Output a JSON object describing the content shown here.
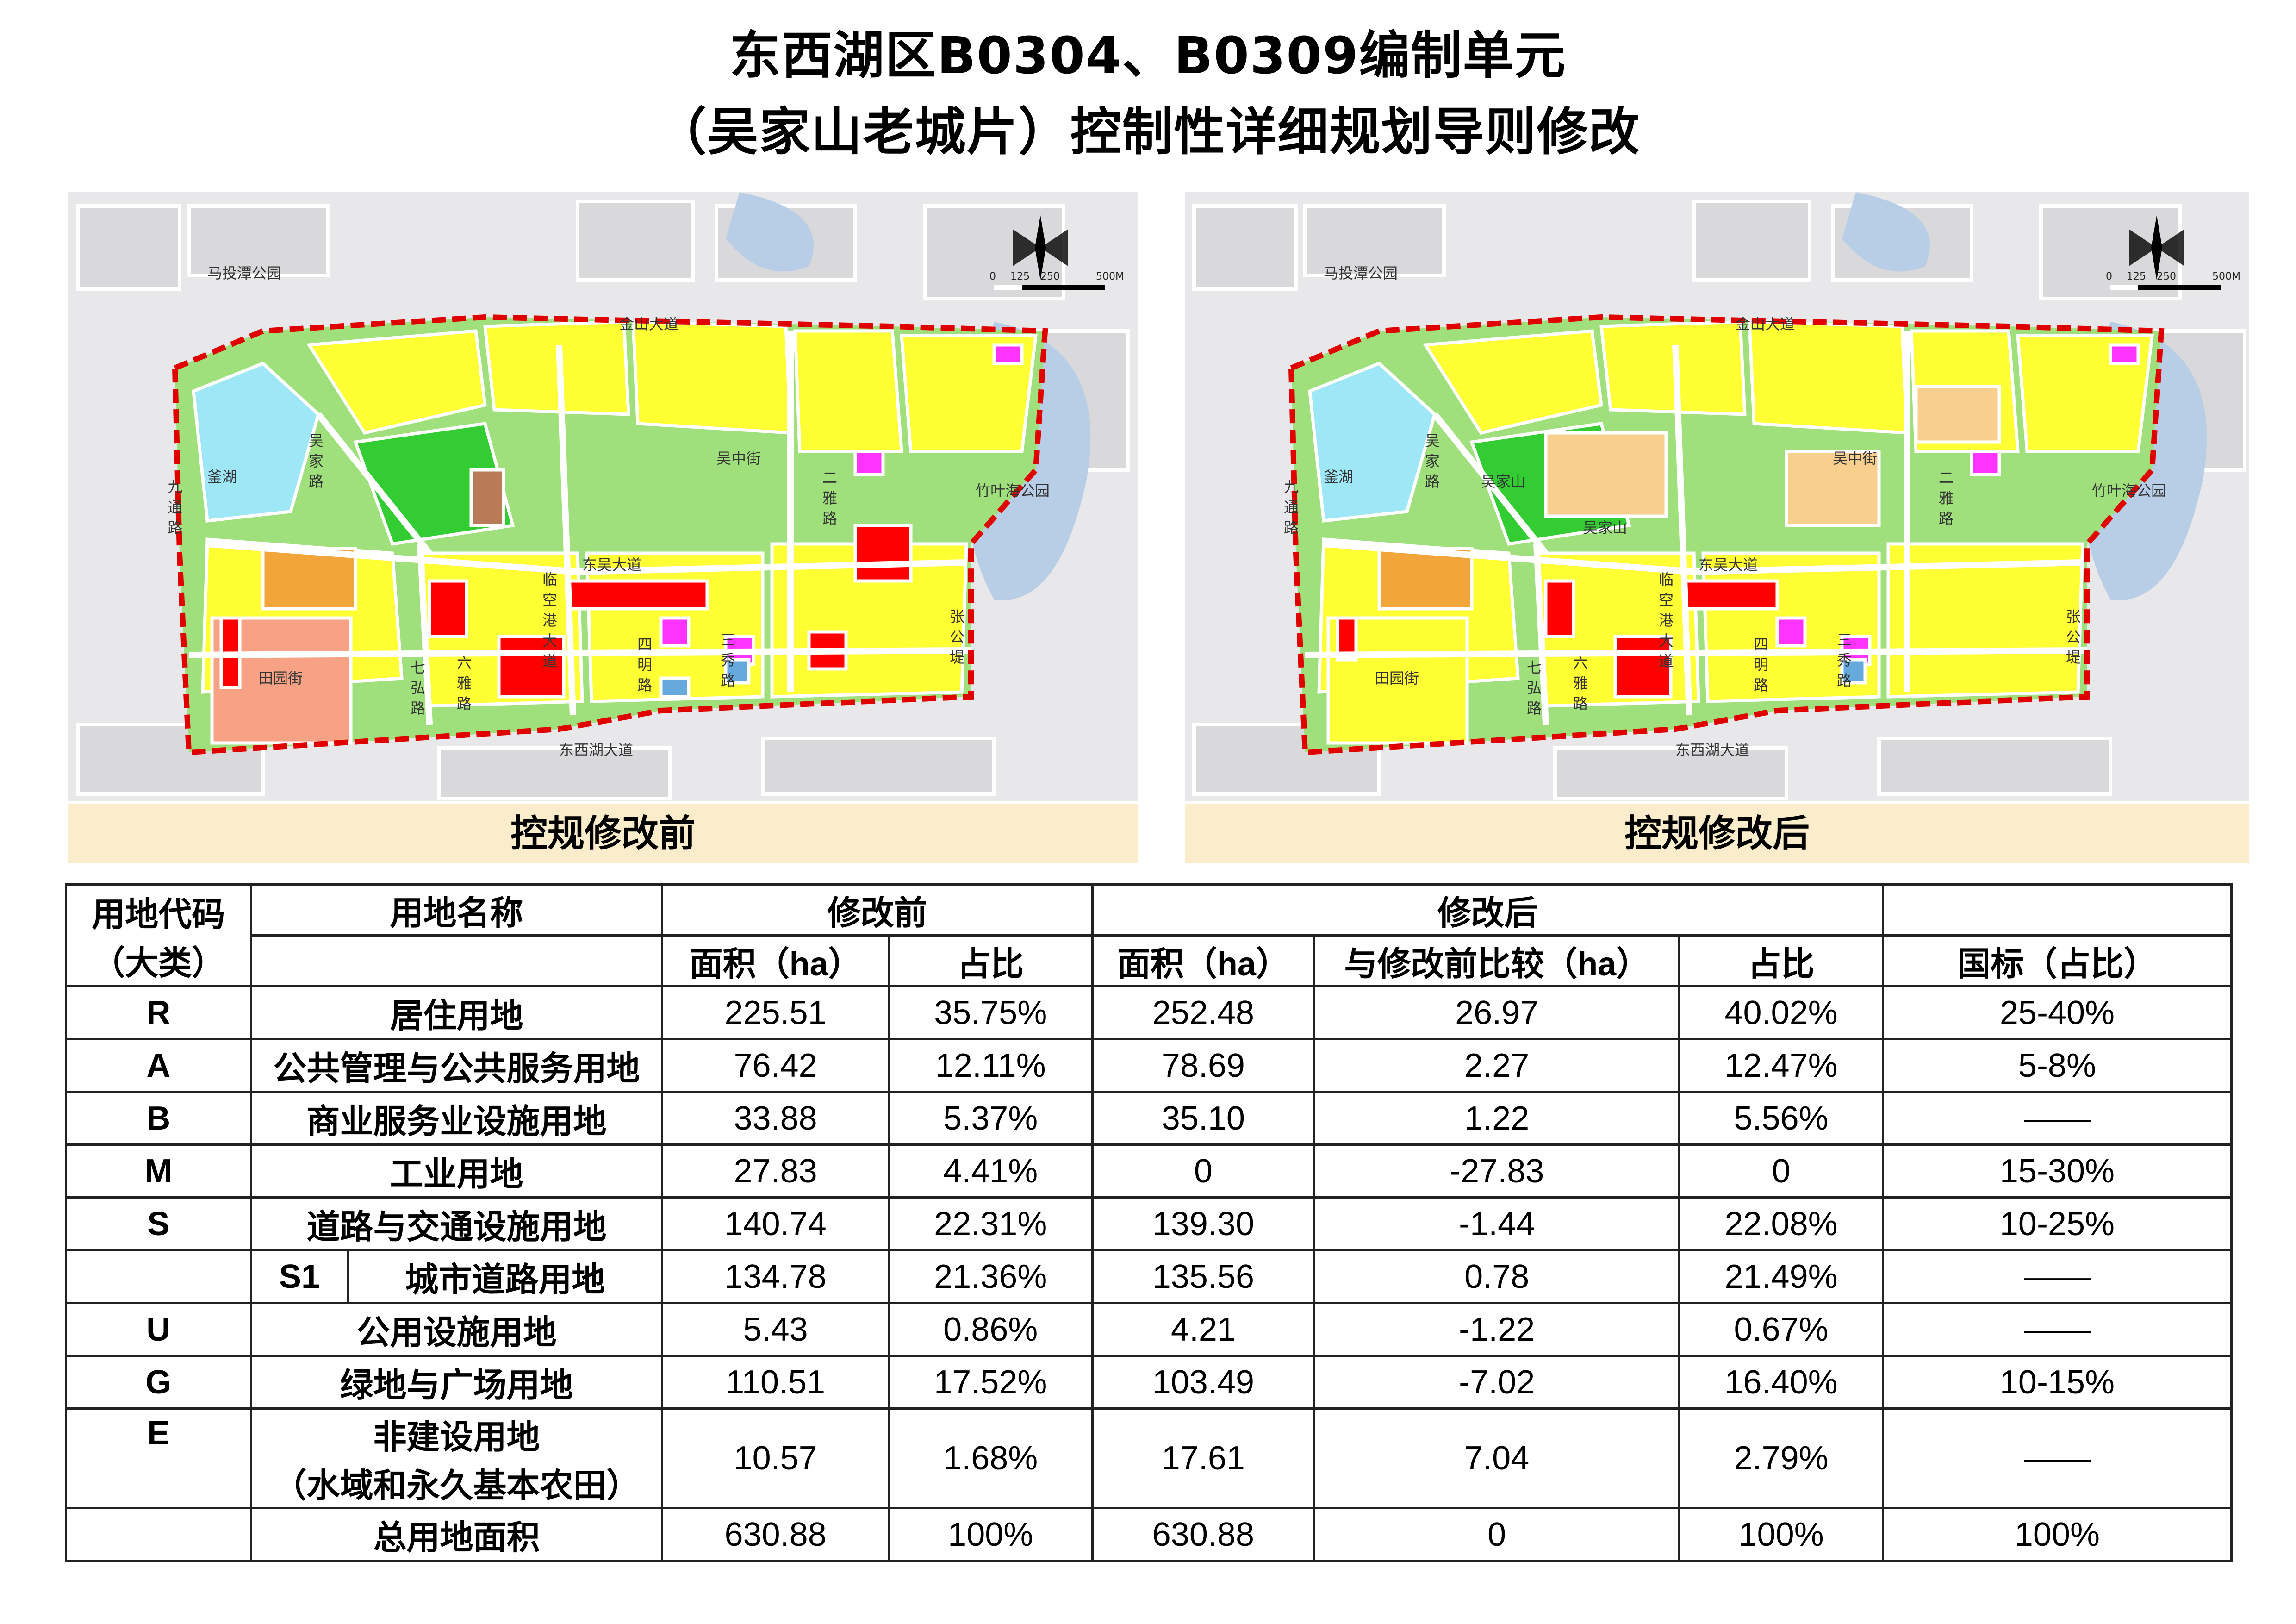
{
  "title_line1": "东西湖区B0304、B0309编制单元",
  "title_line2": "（吴家山老城片）控制性详细规划导则修改",
  "maps": {
    "before": {
      "caption": "控规修改前",
      "labels": {
        "park_north": "马投潭公园",
        "road_north": "金山大道",
        "lake": "釜湖",
        "road_wujia": "吴中街",
        "road_jiu": "九通路",
        "road_east": "东吴大道",
        "road_tianyuan": "田园街",
        "road_qiong": "七弘路",
        "road_linkong": "临空港大道",
        "road_simin": "四明路",
        "road_sanmin": "三秀路",
        "road_erya": "二雅路",
        "road_liu": "六雅路",
        "park_east": "竹叶海公园",
        "road_zhang": "张公堤",
        "road_south": "东西湖大道",
        "road_wujia2": "吴家路"
      },
      "scale": [
        "0",
        "125",
        "250",
        "500M"
      ]
    },
    "after": {
      "caption": "控规修改后",
      "labels": {
        "park_north": "马投潭公园",
        "road_north": "金山大道",
        "lake": "釜湖",
        "mountain": "吴家山",
        "mountain2": "吴家山",
        "road_wujia": "吴中街",
        "road_jiu": "九通路",
        "road_east": "东吴大道",
        "road_tianyuan": "田园街",
        "road_qiong": "七弘路",
        "road_linkong": "临空港大道",
        "road_simin": "四明路",
        "road_sanmin": "三秀路",
        "road_erya": "二雅路",
        "road_liu": "六雅路",
        "park_east": "竹叶海公园",
        "road_zhang": "张公堤",
        "road_south": "东西湖大道",
        "road_wujia2": "吴家路"
      },
      "scale": [
        "0",
        "125",
        "250",
        "500M"
      ]
    }
  },
  "table": {
    "header": {
      "code": "用地代码（大类）",
      "code_l1": "用地代码",
      "code_l2": "（大类）",
      "name": "用地名称",
      "before": "修改前",
      "after": "修改后",
      "area": "面积（ha）",
      "ratio": "占比",
      "area_after": "面积（ha）",
      "compare": "与修改前比较（ha）",
      "ratio_after": "占比",
      "national": "国标（占比）"
    },
    "rows": [
      {
        "code": "R",
        "name": "居住用地",
        "area_before": "225.51",
        "ratio_before": "35.75%",
        "area_after": "252.48",
        "diff": "26.97",
        "ratio_after": "40.02%",
        "national": "25-40%"
      },
      {
        "code": "A",
        "name": "公共管理与公共服务用地",
        "area_before": "76.42",
        "ratio_before": "12.11%",
        "area_after": "78.69",
        "diff": "2.27",
        "ratio_after": "12.47%",
        "national": "5-8%"
      },
      {
        "code": "B",
        "name": "商业服务业设施用地",
        "area_before": "33.88",
        "ratio_before": "5.37%",
        "area_after": "35.10",
        "diff": "1.22",
        "ratio_after": "5.56%",
        "national": "——"
      },
      {
        "code": "M",
        "name": "工业用地",
        "area_before": "27.83",
        "ratio_before": "4.41%",
        "area_after": "0",
        "diff": "-27.83",
        "ratio_after": "0",
        "national": "15-30%"
      },
      {
        "code": "S",
        "name": "道路与交通设施用地",
        "area_before": "140.74",
        "ratio_before": "22.31%",
        "area_after": "139.30",
        "diff": "-1.44",
        "ratio_after": "22.08%",
        "national": "10-25%"
      },
      {
        "code": "",
        "subcode": "S1",
        "name": "城市道路用地",
        "area_before": "134.78",
        "ratio_before": "21.36%",
        "area_after": "135.56",
        "diff": "0.78",
        "ratio_after": "21.49%",
        "national": "——"
      },
      {
        "code": "U",
        "name": "公用设施用地",
        "area_before": "5.43",
        "ratio_before": "0.86%",
        "area_after": "4.21",
        "diff": "-1.22",
        "ratio_after": "0.67%",
        "national": "——"
      },
      {
        "code": "G",
        "name": "绿地与广场用地",
        "area_before": "110.51",
        "ratio_before": "17.52%",
        "area_after": "103.49",
        "diff": "-7.02",
        "ratio_after": "16.40%",
        "national": "10-15%"
      },
      {
        "code": "E",
        "name": "非建设用地",
        "name2": "（水域和永久基本农田）",
        "area_before": "10.57",
        "ratio_before": "1.68%",
        "area_after": "17.61",
        "diff": "7.04",
        "ratio_after": "2.79%",
        "national": "——"
      },
      {
        "code": "",
        "name": "总用地面积",
        "area_before": "630.88",
        "ratio_before": "100%",
        "area_after": "630.88",
        "diff": "0",
        "ratio_after": "100%",
        "national": "100%"
      }
    ]
  },
  "colors": {
    "residential": "#ffff00",
    "public": "#ff00ff",
    "commercial": "#ff0000",
    "industrial": "#b97a57",
    "green": "#33cc33",
    "water": "#9ee7f7",
    "boundary": "#e00000",
    "caption_bg": "#fbeccb"
  }
}
